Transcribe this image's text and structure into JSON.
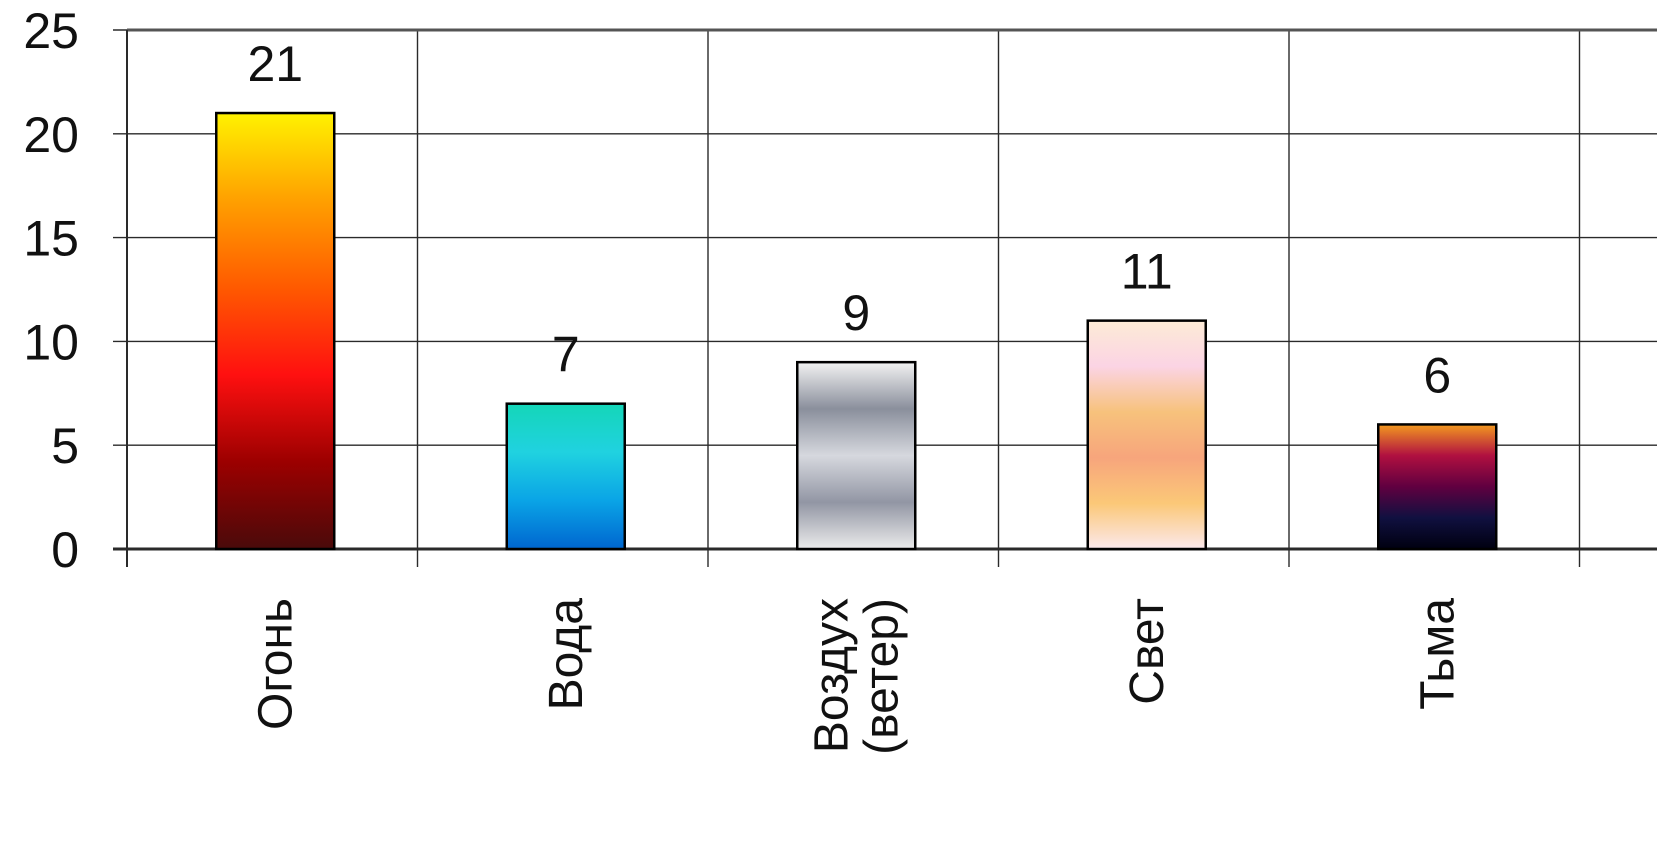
{
  "chart_data": {
    "type": "bar",
    "categories": [
      "Огонь",
      "Вода",
      "Воздух (ветер)",
      "Свет",
      "Тьма"
    ],
    "category_lines": [
      [
        "Огонь"
      ],
      [
        "Вода"
      ],
      [
        "Воздух",
        "(ветер)"
      ],
      [
        "Свет"
      ],
      [
        "Тьма"
      ]
    ],
    "values": [
      21,
      7,
      9,
      11,
      6
    ],
    "data_labels": [
      "21",
      "7",
      "9",
      "11",
      "6"
    ],
    "title": "",
    "xlabel": "",
    "ylabel": "",
    "ylim": [
      0,
      25
    ],
    "yticks": [
      0,
      5,
      10,
      15,
      20,
      25
    ],
    "ytick_labels": [
      "0",
      "5",
      "10",
      "15",
      "20",
      "25"
    ],
    "grid": true,
    "legend": "none",
    "bar_fills": [
      {
        "name": "fire",
        "stops": [
          "#fff200",
          "#ffa000",
          "#ff5a00",
          "#ff1010",
          "#9c0000",
          "#4a0a0a"
        ]
      },
      {
        "name": "water",
        "stops": [
          "#14d6b8",
          "#20d2e0",
          "#0aa4e6",
          "#0066d0"
        ]
      },
      {
        "name": "air",
        "stops": [
          "#f2f2f2",
          "#8a8f9c",
          "#d6d8de",
          "#9296a4",
          "#ebebeb"
        ]
      },
      {
        "name": "light",
        "stops": [
          "#fdebd6",
          "#fbd4e4",
          "#f7c27c",
          "#f7a57c",
          "#fbc878",
          "#fbe8ec"
        ]
      },
      {
        "name": "dark",
        "stops": [
          "#f39a20",
          "#b01040",
          "#600040",
          "#101040",
          "#000010"
        ]
      }
    ],
    "colors": {
      "grid": "#2a2a2a",
      "axis": "#2a2a2a",
      "text": "#111111",
      "bar_outline": "#000000"
    }
  }
}
